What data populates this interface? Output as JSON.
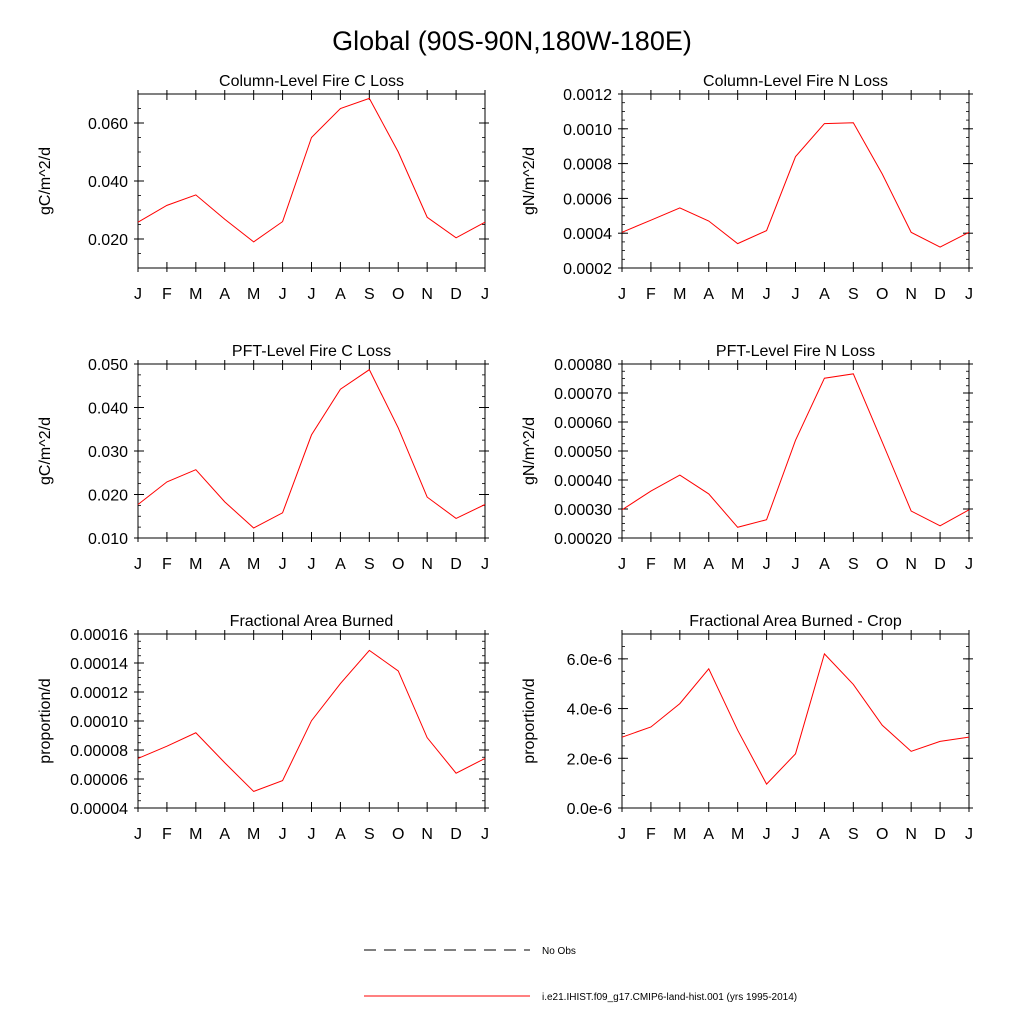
{
  "figure_title": "Global (90S-90N,180W-180E)",
  "legend": {
    "entries": [
      {
        "label": "No Obs",
        "color": "#000000",
        "dash": true
      },
      {
        "label": "i.e21.IHIST.f09_g17.CMIP6-land-hist.001 (yrs 1995-2014)",
        "color": "#ff0000",
        "dash": false
      }
    ]
  },
  "chart_data": [
    {
      "type": "line",
      "title": "Column-Level Fire C Loss",
      "ylabel": "gC/m^2/d",
      "xlabel": "",
      "categories": [
        "J",
        "F",
        "M",
        "A",
        "M",
        "J",
        "J",
        "A",
        "S",
        "O",
        "N",
        "D",
        "J"
      ],
      "ylim": [
        0.01,
        0.07
      ],
      "yticks": [
        0.02,
        0.04,
        0.06
      ],
      "ytick_labels": [
        "0.020",
        "0.040",
        "0.060"
      ],
      "yminor": 0.005,
      "series": [
        {
          "color": "#ff0000",
          "values": [
            0.0258,
            0.0316,
            0.0352,
            0.0268,
            0.019,
            0.026,
            0.055,
            0.065,
            0.0685,
            0.05,
            0.0275,
            0.0204,
            0.0258
          ]
        }
      ]
    },
    {
      "type": "line",
      "title": "Column-Level Fire N Loss",
      "ylabel": "gN/m^2/d",
      "xlabel": "",
      "categories": [
        "J",
        "F",
        "M",
        "A",
        "M",
        "J",
        "J",
        "A",
        "S",
        "O",
        "N",
        "D",
        "J"
      ],
      "ylim": [
        0.0002,
        0.0012
      ],
      "yticks": [
        0.0002,
        0.0004,
        0.0006,
        0.0008,
        0.001,
        0.0012
      ],
      "ytick_labels": [
        "0.0002",
        "0.0004",
        "0.0006",
        "0.0008",
        "0.0010",
        "0.0012"
      ],
      "yminor": 5e-05,
      "series": [
        {
          "color": "#ff0000",
          "values": [
            0.000405,
            0.000475,
            0.000545,
            0.00047,
            0.00034,
            0.000415,
            0.00084,
            0.00103,
            0.001035,
            0.00074,
            0.000405,
            0.00032,
            0.000405
          ]
        }
      ]
    },
    {
      "type": "line",
      "title": "PFT-Level Fire C Loss",
      "ylabel": "gC/m^2/d",
      "xlabel": "",
      "categories": [
        "J",
        "F",
        "M",
        "A",
        "M",
        "J",
        "J",
        "A",
        "S",
        "O",
        "N",
        "D",
        "J"
      ],
      "ylim": [
        0.01,
        0.05
      ],
      "yticks": [
        0.01,
        0.02,
        0.03,
        0.04,
        0.05
      ],
      "ytick_labels": [
        "0.010",
        "0.020",
        "0.030",
        "0.040",
        "0.050"
      ],
      "yminor": 0.0025,
      "series": [
        {
          "color": "#ff0000",
          "values": [
            0.0177,
            0.0229,
            0.0257,
            0.0183,
            0.0123,
            0.0158,
            0.0337,
            0.0442,
            0.0487,
            0.0353,
            0.0194,
            0.0145,
            0.0177
          ]
        }
      ]
    },
    {
      "type": "line",
      "title": "PFT-Level Fire N Loss",
      "ylabel": "gN/m^2/d",
      "xlabel": "",
      "categories": [
        "J",
        "F",
        "M",
        "A",
        "M",
        "J",
        "J",
        "A",
        "S",
        "O",
        "N",
        "D",
        "J"
      ],
      "ylim": [
        0.0002,
        0.0008
      ],
      "yticks": [
        0.0002,
        0.0003,
        0.0004,
        0.0005,
        0.0006,
        0.0007,
        0.0008
      ],
      "ytick_labels": [
        "0.00020",
        "0.00030",
        "0.00040",
        "0.00050",
        "0.00060",
        "0.00070",
        "0.00080"
      ],
      "yminor": 2.5e-05,
      "series": [
        {
          "color": "#ff0000",
          "values": [
            0.000297,
            0.000362,
            0.000417,
            0.000352,
            0.000237,
            0.000263,
            0.000537,
            0.000751,
            0.000766,
            0.000531,
            0.000293,
            0.000242,
            0.000297
          ]
        }
      ]
    },
    {
      "type": "line",
      "title": "Fractional Area Burned",
      "ylabel": "proportion/d",
      "xlabel": "",
      "categories": [
        "J",
        "F",
        "M",
        "A",
        "M",
        "J",
        "J",
        "A",
        "S",
        "O",
        "N",
        "D",
        "J"
      ],
      "ylim": [
        4e-05,
        0.00016
      ],
      "yticks": [
        4e-05,
        6e-05,
        8e-05,
        0.0001,
        0.00012,
        0.00014,
        0.00016
      ],
      "ytick_labels": [
        "0.00004",
        "0.00006",
        "0.00008",
        "0.00010",
        "0.00012",
        "0.00014",
        "0.00016"
      ],
      "yminor": 5e-06,
      "series": [
        {
          "color": "#ff0000",
          "values": [
            7.42e-05,
            8.26e-05,
            9.19e-05,
            7.12e-05,
            5.14e-05,
            5.89e-05,
            0.0001002,
            0.0001258,
            0.0001487,
            0.0001345,
            8.85e-05,
            6.4e-05,
            7.42e-05
          ]
        }
      ]
    },
    {
      "type": "line",
      "title": "Fractional Area Burned - Crop",
      "ylabel": "proportion/d",
      "xlabel": "",
      "categories": [
        "J",
        "F",
        "M",
        "A",
        "M",
        "J",
        "J",
        "A",
        "S",
        "O",
        "N",
        "D",
        "J"
      ],
      "ylim": [
        0.0,
        7e-06
      ],
      "yticks": [
        0.0,
        2e-06,
        4e-06,
        6e-06
      ],
      "ytick_labels": [
        "0.0e-6",
        "2.0e-6",
        "4.0e-6",
        "6.0e-6"
      ],
      "yminor": 5e-07,
      "series": [
        {
          "color": "#ff0000",
          "values": [
            2.85e-06,
            3.26e-06,
            4.2e-06,
            5.6e-06,
            3.13e-06,
            9.6e-07,
            2.18e-06,
            6.2e-06,
            4.97e-06,
            3.33e-06,
            2.28e-06,
            2.68e-06,
            2.85e-06
          ]
        }
      ]
    }
  ]
}
